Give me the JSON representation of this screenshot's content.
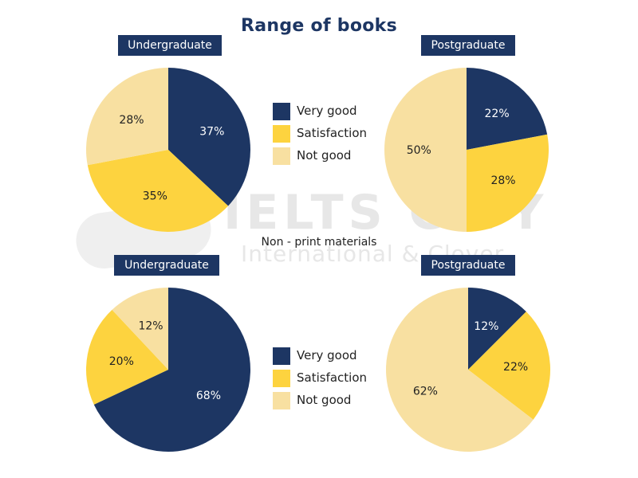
{
  "title": "Range of books",
  "subtitle": "Non - print materials",
  "watermark": {
    "brand": "IELTS CITY",
    "tagline": "International & Clover"
  },
  "legend": [
    {
      "label": "Very good",
      "color": "#1d3663"
    },
    {
      "label": "Satisfaction",
      "color": "#fdd33f"
    },
    {
      "label": "Not good",
      "color": "#f8e0a1"
    }
  ],
  "chart_data": [
    {
      "type": "pie",
      "group": "Range of books",
      "title": "Undergraduate",
      "categories": [
        "Very good",
        "Satisfaction",
        "Not good"
      ],
      "values": [
        37,
        35,
        28
      ],
      "labels": [
        "37%",
        "35%",
        "28%"
      ],
      "colors": [
        "#1d3663",
        "#fdd33f",
        "#f8e0a1"
      ]
    },
    {
      "type": "pie",
      "group": "Range of books",
      "title": "Postgraduate",
      "categories": [
        "Very good",
        "Satisfaction",
        "Not good"
      ],
      "values": [
        22,
        28,
        50
      ],
      "labels": [
        "22%",
        "28%",
        "50%"
      ],
      "colors": [
        "#1d3663",
        "#fdd33f",
        "#f8e0a1"
      ]
    },
    {
      "type": "pie",
      "group": "Non - print materials",
      "title": "Undergraduate",
      "categories": [
        "Very good",
        "Satisfaction",
        "Not good"
      ],
      "values": [
        68,
        20,
        12
      ],
      "labels": [
        "68%",
        "20%",
        "12%"
      ],
      "colors": [
        "#1d3663",
        "#fdd33f",
        "#f8e0a1"
      ]
    },
    {
      "type": "pie",
      "group": "Non - print materials",
      "title": "Postgraduate",
      "categories": [
        "Very good",
        "Satisfaction",
        "Not good"
      ],
      "values": [
        12,
        22,
        62
      ],
      "labels": [
        "12%",
        "22%",
        "62%"
      ],
      "colors": [
        "#1d3663",
        "#fdd33f",
        "#f8e0a1"
      ]
    }
  ]
}
